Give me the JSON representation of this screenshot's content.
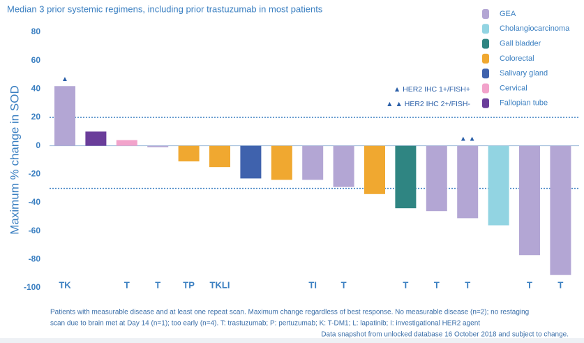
{
  "chart_data": {
    "type": "bar",
    "subtitle": "Median 3 prior systemic regimens, including prior trastuzumab in most patients",
    "ylabel": "Maximum % change in SOD",
    "categories": [
      "TK",
      null,
      "T",
      "T",
      "TP",
      "TKLI",
      null,
      null,
      "TI",
      "T",
      null,
      "T",
      "T",
      "T",
      null,
      "T",
      "T"
    ],
    "values": [
      42,
      10,
      4,
      -1,
      -11,
      -15,
      -23,
      -24,
      -24,
      -29,
      -34,
      -44,
      -46,
      -51,
      -56,
      -77,
      -91
    ],
    "groups": [
      "GEA",
      "Fallopian tube",
      "Cervical",
      "GEA",
      "Colorectal",
      "Colorectal",
      "Salivary gland",
      "Colorectal",
      "GEA",
      "GEA",
      "Colorectal",
      "Gall bladder",
      "GEA",
      "GEA",
      "Cholangiocarcinoma",
      "GEA",
      "GEA"
    ],
    "legend": [
      {
        "name": "GEA",
        "color": "#b3a6d4"
      },
      {
        "name": "Cholangiocarcinoma",
        "color": "#92d4e2"
      },
      {
        "name": "Gall bladder",
        "color": "#2f8582"
      },
      {
        "name": "Colorectal",
        "color": "#f0a830"
      },
      {
        "name": "Salivary gland",
        "color": "#3f62ad"
      },
      {
        "name": "Cervical",
        "color": "#f2a3cb"
      },
      {
        "name": "Fallopian tube",
        "color": "#6a3d9a"
      }
    ],
    "markers": [
      {
        "bar": 0,
        "label": "▲"
      },
      {
        "bar": 13,
        "label": "▲ ▲"
      }
    ],
    "annotations": [
      "▲ HER2 IHC 1+/FISH+",
      "▲ ▲ HER2 IHC 2+/FISH-"
    ],
    "reference_lines": [
      20,
      -30
    ],
    "ylim": [
      -100,
      80
    ],
    "yticks": [
      -100,
      -80,
      -60,
      -40,
      -20,
      0,
      20,
      40,
      60,
      80
    ],
    "footnotes": [
      "Patients with measurable disease and at least one repeat scan. Maximum change regardless of best response. No measurable disease (n=2); no restaging",
      "scan due to brain met at Day 14 (n=1);  too early (n=4). T: trastuzumab; P: pertuzumab; K: T-DM1; L: lapatinib; I: investigational HER2 agent",
      "Data snapshot from unlocked database 16 October 2018 and subject to change."
    ]
  }
}
